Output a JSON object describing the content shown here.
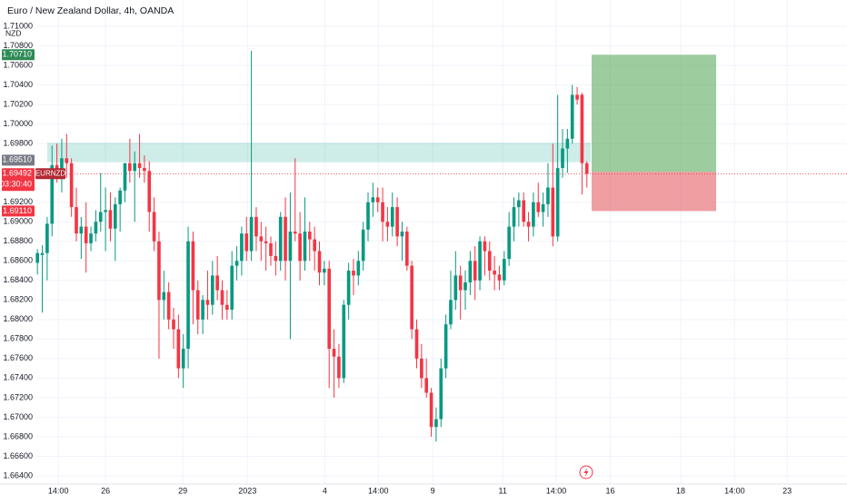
{
  "chart_data": {
    "type": "candlestick",
    "title": "Euro / New Zealand Dollar, 4h, OANDA",
    "currency": "NZD",
    "symbol": "EURNZD",
    "countdown": "03:30:40",
    "up_color": "#089981",
    "down_color": "#f23645",
    "grid": true,
    "open": [
      1.6858,
      1.6866,
      1.6868,
      1.6898,
      1.6958,
      1.695,
      1.6965,
      1.696,
      1.6915,
      1.6888,
      1.6895,
      1.6878,
      1.6888,
      1.69,
      1.691,
      1.6912,
      1.6893,
      1.6918,
      1.6932,
      1.696,
      1.6952,
      1.696,
      1.6955,
      1.6952,
      1.691,
      1.688,
      1.682,
      1.6828,
      1.68,
      1.679,
      1.675,
      1.677,
      1.688,
      1.683,
      1.68,
      1.682,
      1.6815,
      1.6845,
      1.683,
      1.6815,
      1.681,
      1.6855,
      1.686,
      1.6888,
      1.687,
      1.6905,
      1.6885,
      1.688,
      1.6878,
      1.6865,
      1.686,
      1.6905,
      1.686,
      1.689,
      1.6888,
      1.686,
      1.689,
      1.6882,
      1.687,
      1.6848,
      1.6852,
      1.677,
      1.6762,
      1.674,
      1.6815,
      1.685,
      1.6845,
      1.686,
      1.6892,
      1.692,
      1.6925,
      1.692,
      1.69,
      1.6895,
      1.6915,
      1.6885,
      1.689,
      1.6855,
      1.679,
      1.676,
      1.674,
      1.6725,
      1.669,
      1.6698,
      1.675,
      1.6795,
      1.682,
      1.6845,
      1.683,
      1.6838,
      1.686,
      1.684,
      1.688,
      1.687,
      1.685,
      1.6846,
      1.684,
      1.6862,
      1.6895,
      1.6915,
      1.6922,
      1.69,
      1.6895,
      1.692,
      1.691,
      1.6918,
      1.6935,
      1.6885,
      1.6955,
      1.6975,
      1.6985,
      1.703,
      1.703,
      1.696
    ],
    "high": [
      1.6872,
      1.6876,
      1.6905,
      1.6978,
      1.698,
      1.6985,
      1.699,
      1.6965,
      1.6935,
      1.6905,
      1.692,
      1.6895,
      1.6912,
      1.695,
      1.6935,
      1.693,
      1.6925,
      1.6935,
      1.696,
      1.6985,
      1.6972,
      1.699,
      1.6968,
      1.6962,
      1.6925,
      1.689,
      1.685,
      1.6838,
      1.6812,
      1.6805,
      1.6785,
      1.6895,
      1.689,
      1.684,
      1.6825,
      1.685,
      1.686,
      1.6865,
      1.684,
      1.683,
      1.687,
      1.6875,
      1.6895,
      1.6905,
      1.7075,
      1.6915,
      1.69,
      1.6895,
      1.6885,
      1.688,
      1.691,
      1.6925,
      1.693,
      1.6965,
      1.691,
      1.6925,
      1.69,
      1.6895,
      1.688,
      1.686,
      1.686,
      1.679,
      1.6775,
      1.682,
      1.6858,
      1.6862,
      1.687,
      1.69,
      1.693,
      1.694,
      1.6935,
      1.6935,
      1.6915,
      1.693,
      1.6925,
      1.69,
      1.6895,
      1.686,
      1.68,
      1.6775,
      1.676,
      1.673,
      1.671,
      1.676,
      1.6805,
      1.685,
      1.687,
      1.6855,
      1.685,
      1.687,
      1.6875,
      1.6885,
      1.6885,
      1.688,
      1.6865,
      1.6855,
      1.687,
      1.691,
      1.6925,
      1.693,
      1.693,
      1.691,
      1.693,
      1.694,
      1.693,
      1.696,
      1.698,
      1.703,
      1.6995,
      1.6995,
      1.704,
      1.7038,
      1.7032,
      1.6962
    ],
    "low": [
      1.6846,
      1.6807,
      1.684,
      1.6885,
      1.694,
      1.693,
      1.6945,
      1.6905,
      1.688,
      1.6862,
      1.6848,
      1.687,
      1.688,
      1.689,
      1.687,
      1.688,
      1.686,
      1.689,
      1.692,
      1.694,
      1.69,
      1.6945,
      1.694,
      1.689,
      1.687,
      1.676,
      1.68,
      1.679,
      1.677,
      1.674,
      1.673,
      1.675,
      1.6795,
      1.6785,
      1.6785,
      1.68,
      1.6805,
      1.682,
      1.68,
      1.68,
      1.68,
      1.684,
      1.6845,
      1.686,
      1.686,
      1.687,
      1.686,
      1.685,
      1.6855,
      1.6845,
      1.685,
      1.684,
      1.678,
      1.688,
      1.684,
      1.685,
      1.686,
      1.685,
      1.6835,
      1.6835,
      1.673,
      1.672,
      1.673,
      1.6735,
      1.68,
      1.6825,
      1.6835,
      1.685,
      1.688,
      1.6905,
      1.691,
      1.688,
      1.688,
      1.6885,
      1.6875,
      1.686,
      1.685,
      1.678,
      1.675,
      1.673,
      1.672,
      1.668,
      1.6675,
      1.669,
      1.674,
      1.679,
      1.681,
      1.68,
      1.681,
      1.6825,
      1.682,
      1.683,
      1.6845,
      1.684,
      1.683,
      1.683,
      1.6835,
      1.6855,
      1.688,
      1.6895,
      1.6895,
      1.688,
      1.6885,
      1.6905,
      1.6895,
      1.6905,
      1.6875,
      1.688,
      1.6945,
      1.695,
      1.698,
      1.702,
      1.6928,
      1.6935
    ],
    "close": [
      1.6868,
      1.6868,
      1.6898,
      1.6958,
      1.695,
      1.6965,
      1.696,
      1.6915,
      1.6888,
      1.6895,
      1.6878,
      1.6888,
      1.69,
      1.691,
      1.6912,
      1.6893,
      1.6918,
      1.6932,
      1.696,
      1.6952,
      1.696,
      1.6955,
      1.6952,
      1.691,
      1.688,
      1.682,
      1.6828,
      1.68,
      1.679,
      1.675,
      1.677,
      1.688,
      1.683,
      1.68,
      1.682,
      1.6815,
      1.6845,
      1.683,
      1.6815,
      1.681,
      1.6855,
      1.686,
      1.6888,
      1.687,
      1.6905,
      1.6885,
      1.688,
      1.6878,
      1.6865,
      1.686,
      1.6905,
      1.686,
      1.689,
      1.6888,
      1.686,
      1.689,
      1.6882,
      1.687,
      1.6848,
      1.6852,
      1.677,
      1.6762,
      1.674,
      1.6815,
      1.685,
      1.6845,
      1.686,
      1.6892,
      1.692,
      1.6925,
      1.692,
      1.69,
      1.6895,
      1.6915,
      1.6885,
      1.689,
      1.6855,
      1.679,
      1.676,
      1.674,
      1.6725,
      1.669,
      1.6698,
      1.675,
      1.6795,
      1.682,
      1.6845,
      1.683,
      1.6838,
      1.686,
      1.684,
      1.688,
      1.687,
      1.685,
      1.6846,
      1.684,
      1.6862,
      1.6895,
      1.6915,
      1.6922,
      1.69,
      1.6895,
      1.692,
      1.691,
      1.6918,
      1.6935,
      1.6885,
      1.6955,
      1.6975,
      1.6985,
      1.703,
      1.7025,
      1.696,
      1.6949
    ],
    "ylim": [
      1.66316,
      1.7127
    ],
    "yticks": [
      {
        "value": 1.71,
        "label": "1.71000"
      },
      {
        "value": 1.708,
        "label": "1.70800"
      },
      {
        "value": 1.706,
        "label": "1.70600"
      },
      {
        "value": 1.704,
        "label": "1.70400"
      },
      {
        "value": 1.702,
        "label": "1.70200"
      },
      {
        "value": 1.7,
        "label": "1.70000"
      },
      {
        "value": 1.698,
        "label": "1.69800"
      },
      {
        "value": 1.692,
        "label": "1.69200"
      },
      {
        "value": 1.69,
        "label": "1.69000"
      },
      {
        "value": 1.688,
        "label": "1.68800"
      },
      {
        "value": 1.686,
        "label": "1.68600"
      },
      {
        "value": 1.684,
        "label": "1.68400"
      },
      {
        "value": 1.682,
        "label": "1.68200"
      },
      {
        "value": 1.68,
        "label": "1.68000"
      },
      {
        "value": 1.678,
        "label": "1.67800"
      },
      {
        "value": 1.676,
        "label": "1.67600"
      },
      {
        "value": 1.674,
        "label": "1.67400"
      },
      {
        "value": 1.672,
        "label": "1.67200"
      },
      {
        "value": 1.67,
        "label": "1.67000"
      },
      {
        "value": 1.668,
        "label": "1.66800"
      },
      {
        "value": 1.666,
        "label": "1.66600"
      },
      {
        "value": 1.664,
        "label": "1.66400"
      }
    ],
    "xlim": [
      -7.7,
      166.5
    ],
    "xticks": [
      {
        "value": 4.3,
        "label": "14:00"
      },
      {
        "value": 14.0,
        "label": "26"
      },
      {
        "value": 29.9,
        "label": "29"
      },
      {
        "value": 43.2,
        "label": "2023"
      },
      {
        "value": 59.1,
        "label": "4"
      },
      {
        "value": 70.1,
        "label": "14:00"
      },
      {
        "value": 81.3,
        "label": "9"
      },
      {
        "value": 95.7,
        "label": "11"
      },
      {
        "value": 106.7,
        "label": "14:00"
      },
      {
        "value": 117.8,
        "label": "16"
      },
      {
        "value": 132.3,
        "label": "18"
      },
      {
        "value": 143.4,
        "label": "14:00"
      },
      {
        "value": 154.2,
        "label": "23"
      }
    ],
    "zone": [
      1.6961,
      1.6981
    ],
    "position": {
      "target": {
        "value": 1.7071,
        "label": "1.70710"
      },
      "entry": {
        "value": 1.6951,
        "label": "1.69510"
      },
      "stop": {
        "value": 1.6911,
        "label": "1.69110"
      }
    },
    "last_price": {
      "value": 1.69492,
      "label": "1.69492"
    }
  }
}
